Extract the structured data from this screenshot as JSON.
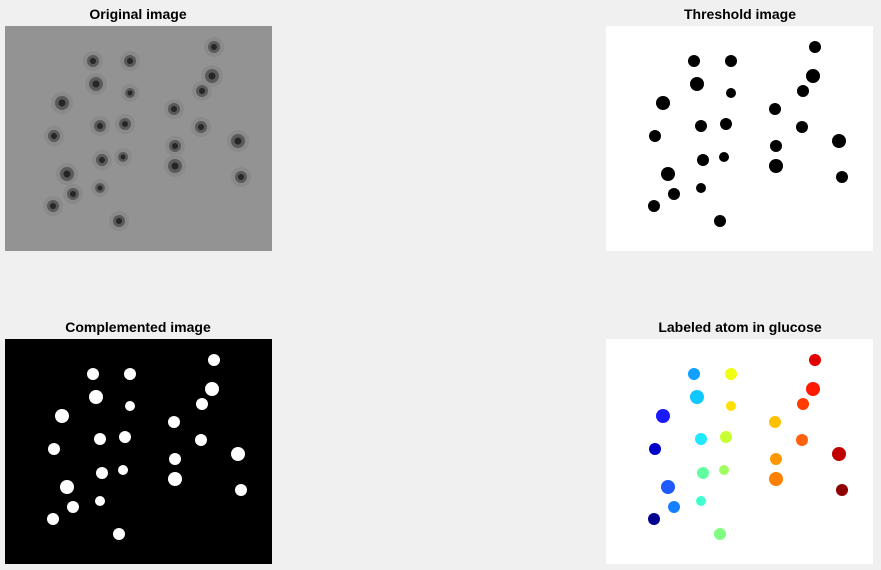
{
  "figure": {
    "panels": [
      {
        "id": "original",
        "title": "Original image"
      },
      {
        "id": "threshold",
        "title": "Threshold image"
      },
      {
        "id": "complement",
        "title": "Complemented image"
      },
      {
        "id": "labeled",
        "title": "Labeled atom in glucose"
      }
    ]
  },
  "colors": {
    "figure_background": "#f0f0f0",
    "original_background": "#939393",
    "threshold_background": "#ffffff",
    "threshold_blob": "#000000",
    "complement_background": "#000000",
    "complement_blob": "#ffffff"
  },
  "labeled_colormap": "jet"
}
